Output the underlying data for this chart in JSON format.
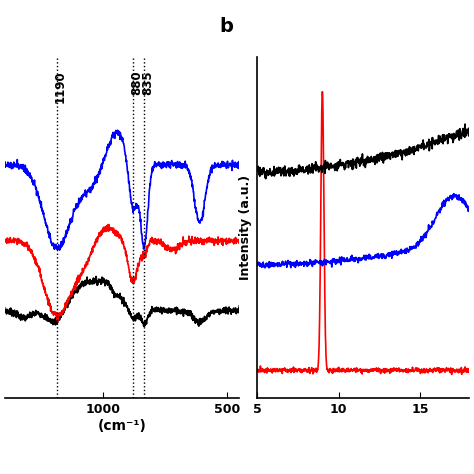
{
  "panel_a": {
    "xmin": 1400,
    "xmax": 450,
    "annotations": [
      {
        "label": "1190",
        "x": 1190
      },
      {
        "label": "880",
        "x": 880
      },
      {
        "label": "835",
        "x": 835
      }
    ],
    "xlabel": "(cm⁻¹)",
    "xticks": [
      1000,
      500
    ]
  },
  "panel_b": {
    "xmin": 5,
    "xmax": 18,
    "ylabel": "Intensity (a.u.)",
    "label_b": "b",
    "xticks": [
      5,
      10,
      15
    ]
  },
  "bg_color": "#ffffff"
}
